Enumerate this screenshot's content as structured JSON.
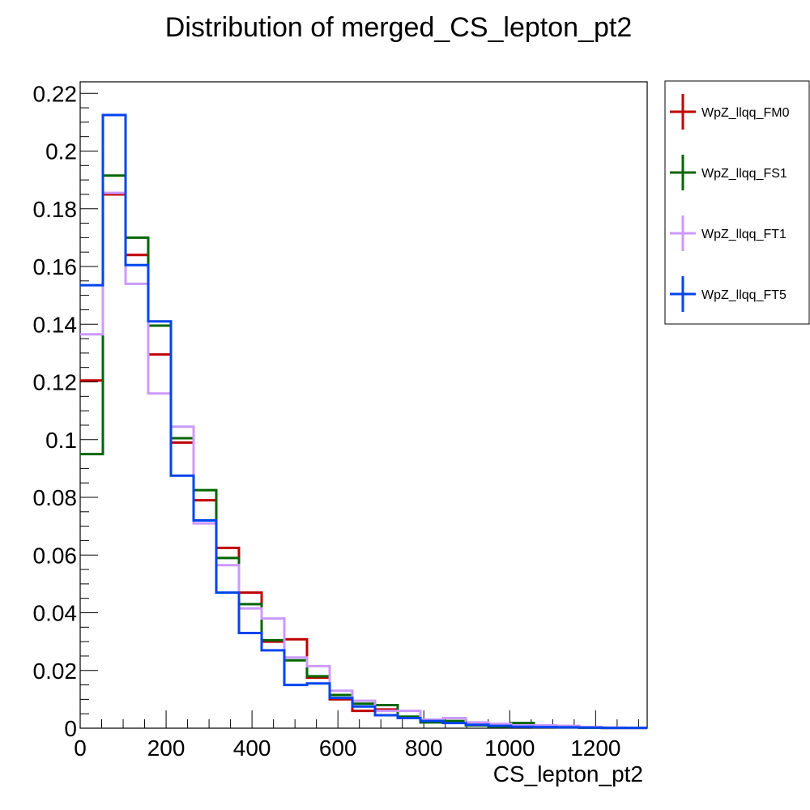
{
  "chart_data": {
    "type": "line",
    "title": "Distribution of merged_CS_lepton_pt2",
    "xlabel": "CS_lepton_pt2",
    "ylabel": "",
    "xlim": [
      0,
      1320
    ],
    "ylim": [
      0,
      0.224
    ],
    "bin_width": 52.8,
    "x_ticks": [
      0,
      200,
      400,
      600,
      800,
      1000,
      1200
    ],
    "x_tick_labels": [
      "0",
      "200",
      "400",
      "600",
      "800",
      "1000",
      "1200"
    ],
    "y_ticks": [
      0,
      0.02,
      0.04,
      0.06,
      0.08,
      0.1,
      0.12,
      0.14,
      0.16,
      0.18,
      0.2,
      0.22
    ],
    "y_tick_labels": [
      "0",
      "0.02",
      "0.04",
      "0.06",
      "0.08",
      "0.1",
      "0.12",
      "0.14",
      "0.16",
      "0.18",
      "0.2",
      "0.22"
    ],
    "grid": false,
    "legend_position": "right",
    "series": [
      {
        "name": "WpZ_llqq_FM0",
        "color": "#c00000",
        "values": [
          0.1205,
          0.185,
          0.164,
          0.1295,
          0.099,
          0.079,
          0.0625,
          0.047,
          0.03,
          0.0308,
          0.0175,
          0.01,
          0.006,
          0.0065,
          0.0035,
          0.0025,
          0.002,
          0.001,
          0.001,
          0.0005,
          0.0004,
          0.0003,
          0.0002,
          0.0001,
          0.0001
        ]
      },
      {
        "name": "WpZ_llqq_FS1",
        "color": "#006600",
        "values": [
          0.095,
          0.1915,
          0.17,
          0.1395,
          0.1005,
          0.0825,
          0.059,
          0.043,
          0.0305,
          0.0235,
          0.018,
          0.0115,
          0.0085,
          0.008,
          0.004,
          0.002,
          0.0025,
          0.001,
          0.0005,
          0.0018,
          0.0004,
          0.0003,
          0.0002,
          0.0001,
          0.0001
        ]
      },
      {
        "name": "WpZ_llqq_FT1",
        "color": "#cc99ff",
        "values": [
          0.1365,
          0.1855,
          0.154,
          0.116,
          0.1045,
          0.071,
          0.0565,
          0.0415,
          0.038,
          0.0245,
          0.0215,
          0.013,
          0.0095,
          0.006,
          0.006,
          0.003,
          0.0035,
          0.002,
          0.0015,
          0.001,
          0.001,
          0.0008,
          0.0004,
          0.0002,
          0.0001
        ]
      },
      {
        "name": "WpZ_llqq_FT5",
        "color": "#0044ee",
        "values": [
          0.1535,
          0.2125,
          0.1605,
          0.141,
          0.0875,
          0.072,
          0.047,
          0.033,
          0.027,
          0.015,
          0.0155,
          0.0105,
          0.0075,
          0.0045,
          0.0035,
          0.0025,
          0.0018,
          0.0012,
          0.0008,
          0.0005,
          0.0004,
          0.0003,
          0.0002,
          0.0001,
          0.0001
        ]
      }
    ]
  }
}
